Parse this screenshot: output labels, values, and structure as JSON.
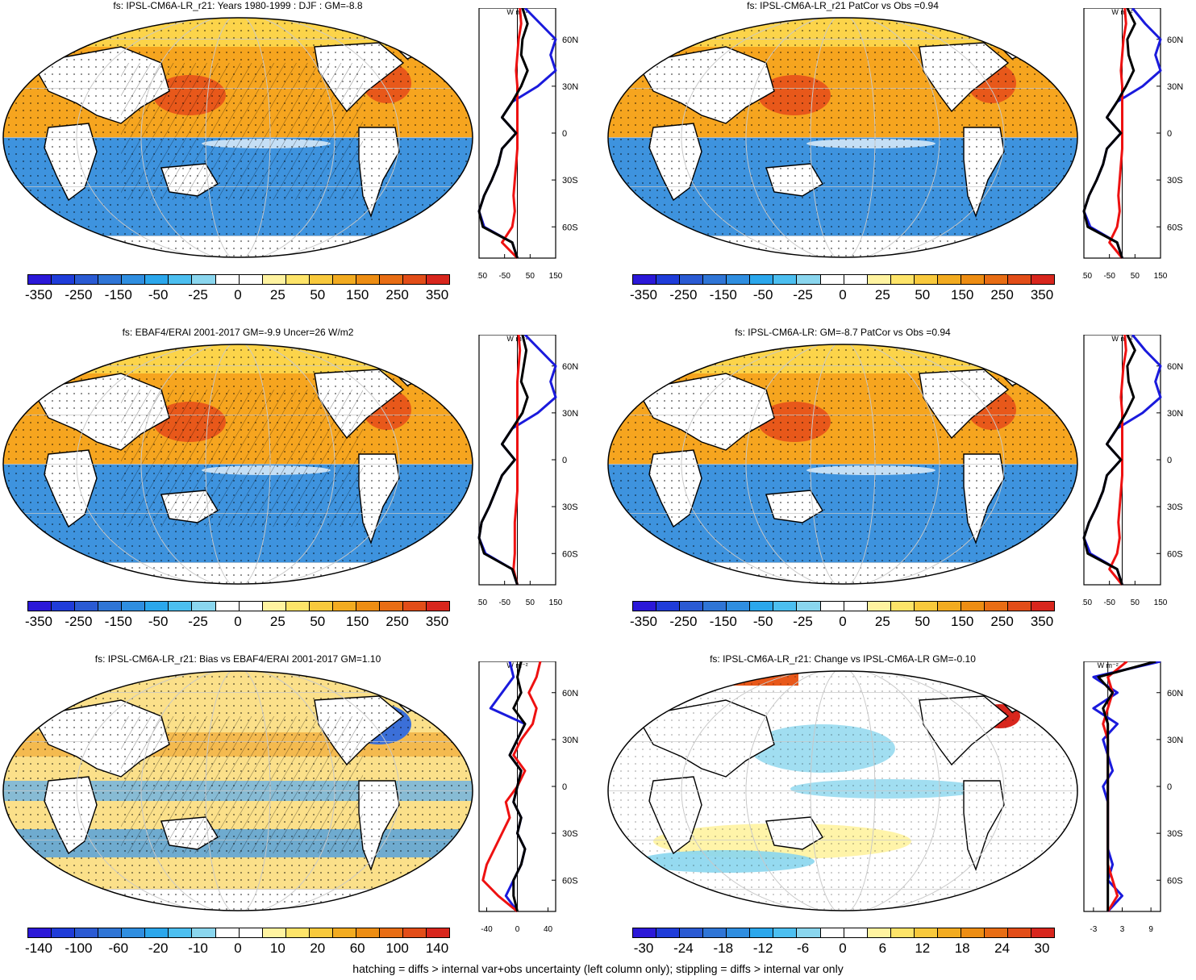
{
  "colors": {
    "colorbar": [
      "#2b18d8",
      "#1f3cd9",
      "#2a5ad3",
      "#2f75d6",
      "#2f8ee0",
      "#2ba7ec",
      "#4cbff0",
      "#8ad6ee",
      "#ffffff",
      "#ffffff",
      "#fff3a0",
      "#fde469",
      "#f8c93c",
      "#f2ab20",
      "#ed8d13",
      "#e86d14",
      "#e24d18",
      "#d8261d"
    ],
    "ocean_warm": "#f6a51f",
    "ocean_warm_strong": "#e8581a",
    "ocean_cool": "#3e93de",
    "land": "#ffffff",
    "line_black": "#000000",
    "line_blue": "#1a1adc",
    "line_red": "#ee1111"
  },
  "panels": [
    {
      "title": "fs: IPSL-CM6A-LR_r21: Years 1980-1999 : DJF : GM=-8.8",
      "colorbar_labels": [
        "-350",
        "-250",
        "-150",
        "-50",
        "-25",
        "0",
        "25",
        "50",
        "150",
        "250",
        "350"
      ],
      "zonal": {
        "unit": "W m⁻²",
        "x_ticks": [
          "-150",
          "-50",
          "50",
          "150"
        ],
        "y_ticks": [
          "60N",
          "30N",
          "0",
          "30S",
          "60S"
        ],
        "xlim": [
          -150,
          150
        ]
      }
    },
    {
      "title": "fs: IPSL-CM6A-LR_r21 PatCor vs Obs =0.94",
      "colorbar_labels": [
        "-350",
        "-250",
        "-150",
        "-50",
        "-25",
        "0",
        "25",
        "50",
        "150",
        "250",
        "350"
      ],
      "zonal": {
        "unit": "W m⁻²",
        "x_ticks": [
          "-150",
          "-50",
          "50",
          "150"
        ],
        "y_ticks": [
          "60N",
          "30N",
          "0",
          "30S",
          "60S"
        ],
        "xlim": [
          -150,
          150
        ]
      }
    },
    {
      "title": "fs: EBAF4/ERAI 2001-2017 GM=-9.9 Uncer=26 W/m2",
      "colorbar_labels": [
        "-350",
        "-250",
        "-150",
        "-50",
        "-25",
        "0",
        "25",
        "50",
        "150",
        "250",
        "350"
      ],
      "zonal": {
        "unit": "W m⁻²",
        "x_ticks": [
          "-150",
          "-50",
          "50",
          "150"
        ],
        "y_ticks": [
          "60N",
          "30N",
          "0",
          "30S",
          "60S"
        ],
        "xlim": [
          -150,
          150
        ]
      }
    },
    {
      "title": "fs: IPSL-CM6A-LR: GM=-8.7 PatCor vs Obs =0.94",
      "colorbar_labels": [
        "-350",
        "-250",
        "-150",
        "-50",
        "-25",
        "0",
        "25",
        "50",
        "150",
        "250",
        "350"
      ],
      "zonal": {
        "unit": "W m⁻²",
        "x_ticks": [
          "-150",
          "-50",
          "50",
          "150"
        ],
        "y_ticks": [
          "60N",
          "30N",
          "0",
          "30S",
          "60S"
        ],
        "xlim": [
          -150,
          150
        ]
      }
    },
    {
      "title": "fs: IPSL-CM6A-LR_r21: Bias vs EBAF4/ERAI 2001-2017 GM=1.10",
      "colorbar_labels": [
        "-140",
        "-100",
        "-60",
        "-20",
        "-10",
        "0",
        "10",
        "20",
        "60",
        "100",
        "140"
      ],
      "zonal": {
        "unit": "W m⁻²",
        "x_ticks": [
          "-40",
          "0",
          "40"
        ],
        "y_ticks": [
          "60N",
          "30N",
          "0",
          "30S",
          "60S"
        ],
        "xlim": [
          -50,
          50
        ]
      }
    },
    {
      "title": "fs: IPSL-CM6A-LR_r21: Change vs IPSL-CM6A-LR GM=-0.10",
      "colorbar_labels": [
        "-30",
        "-24",
        "-18",
        "-12",
        "-6",
        "0",
        "6",
        "12",
        "18",
        "24",
        "30"
      ],
      "zonal": {
        "unit": "W m⁻²",
        "x_ticks": [
          "-3",
          "3",
          "9"
        ],
        "y_ticks": [
          "60N",
          "30N",
          "0",
          "30S",
          "60S"
        ],
        "xlim": [
          -5,
          11
        ]
      }
    }
  ],
  "footnote": "hatching = diffs > internal var+obs uncertainty (left column only); stippling = diffs > internal var only",
  "chart_data": [
    {
      "type": "zonal-mean profile",
      "panel": 1,
      "y_unit": "latitude (deg)",
      "x_unit": "W m-2",
      "series": [
        {
          "color": "black",
          "y": [
            80,
            70,
            60,
            50,
            40,
            30,
            20,
            10,
            0,
            -10,
            -20,
            -30,
            -40,
            -50,
            -60,
            -70,
            -80
          ],
          "x": [
            20,
            40,
            20,
            15,
            40,
            15,
            -20,
            -60,
            -5,
            -60,
            -75,
            -100,
            -130,
            -150,
            -135,
            -20,
            0
          ]
        },
        {
          "color": "blue",
          "y": [
            80,
            70,
            60,
            50,
            40,
            30,
            20,
            10,
            0,
            -10,
            -20,
            -30,
            -40,
            -50,
            -60,
            -70,
            -80
          ],
          "x": [
            30,
            90,
            150,
            130,
            150,
            80,
            -20,
            -60,
            -5,
            -60,
            -75,
            -100,
            -130,
            -150,
            -130,
            -20,
            0
          ]
        },
        {
          "color": "red",
          "y": [
            80,
            70,
            60,
            50,
            40,
            30,
            20,
            10,
            0,
            -10,
            -20,
            -30,
            -40,
            -50,
            -60,
            -70,
            -80
          ],
          "x": [
            10,
            15,
            5,
            0,
            -5,
            0,
            0,
            0,
            0,
            0,
            -5,
            -10,
            -15,
            -10,
            -20,
            -60,
            0
          ]
        }
      ]
    },
    {
      "type": "zonal-mean profile",
      "panel": 2,
      "y_unit": "latitude (deg)",
      "x_unit": "W m-2",
      "series": [
        {
          "color": "black",
          "y": [
            80,
            70,
            60,
            50,
            40,
            30,
            20,
            10,
            0,
            -10,
            -20,
            -30,
            -40,
            -50,
            -60,
            -70,
            -80
          ],
          "x": [
            20,
            50,
            20,
            25,
            45,
            15,
            -20,
            -60,
            -5,
            -60,
            -75,
            -100,
            -130,
            -150,
            -135,
            -20,
            0
          ]
        },
        {
          "color": "blue",
          "y": [
            80,
            70,
            60,
            50,
            40,
            30,
            20,
            10,
            0,
            -10,
            -20,
            -30,
            -40,
            -50,
            -60,
            -70,
            -80
          ],
          "x": [
            40,
            90,
            150,
            130,
            150,
            80,
            -20,
            -60,
            -5,
            -60,
            -75,
            -100,
            -130,
            -150,
            -125,
            -20,
            0
          ]
        },
        {
          "color": "red",
          "y": [
            80,
            70,
            60,
            50,
            40,
            30,
            20,
            10,
            0,
            -10,
            -20,
            -30,
            -40,
            -50,
            -60,
            -70,
            -80
          ],
          "x": [
            10,
            15,
            5,
            0,
            -5,
            0,
            0,
            0,
            0,
            0,
            -5,
            -10,
            -15,
            -10,
            -20,
            -50,
            0
          ]
        }
      ]
    },
    {
      "type": "zonal-mean profile",
      "panel": 3,
      "y_unit": "latitude (deg)",
      "x_unit": "W m-2",
      "series": [
        {
          "color": "black",
          "y": [
            80,
            70,
            60,
            50,
            40,
            30,
            20,
            10,
            0,
            -10,
            -20,
            -30,
            -40,
            -50,
            -60,
            -70,
            -80
          ],
          "x": [
            20,
            35,
            25,
            15,
            40,
            20,
            -20,
            -60,
            -10,
            -60,
            -85,
            -110,
            -140,
            -150,
            -130,
            -20,
            0
          ]
        },
        {
          "color": "blue",
          "y": [
            80,
            70,
            60,
            50,
            40,
            30,
            20,
            10,
            0,
            -10,
            -20,
            -30,
            -40,
            -50,
            -60,
            -70,
            -80
          ],
          "x": [
            30,
            90,
            150,
            130,
            150,
            80,
            -20,
            -60,
            -10,
            -60,
            -85,
            -110,
            -140,
            -150,
            -125,
            -20,
            0
          ]
        },
        {
          "color": "red",
          "y": [
            80,
            70,
            60,
            50,
            40,
            30,
            20,
            10,
            0,
            -10,
            -20,
            -30,
            -40,
            -50,
            -60,
            -70,
            -80
          ],
          "x": [
            5,
            10,
            5,
            0,
            0,
            0,
            0,
            0,
            0,
            0,
            0,
            -5,
            -10,
            -10,
            -10,
            -15,
            0
          ]
        }
      ]
    },
    {
      "type": "zonal-mean profile",
      "panel": 4,
      "y_unit": "latitude (deg)",
      "x_unit": "W m-2",
      "series": [
        {
          "color": "black",
          "y": [
            80,
            70,
            60,
            50,
            40,
            30,
            20,
            10,
            0,
            -10,
            -20,
            -30,
            -40,
            -50,
            -60,
            -70,
            -80
          ],
          "x": [
            20,
            50,
            20,
            25,
            45,
            15,
            -20,
            -60,
            -5,
            -60,
            -75,
            -100,
            -130,
            -150,
            -135,
            -20,
            0
          ]
        },
        {
          "color": "blue",
          "y": [
            80,
            70,
            60,
            50,
            40,
            30,
            20,
            10,
            0,
            -10,
            -20,
            -30,
            -40,
            -50,
            -60,
            -70,
            -80
          ],
          "x": [
            40,
            90,
            150,
            130,
            150,
            80,
            -20,
            -60,
            -5,
            -60,
            -75,
            -100,
            -130,
            -150,
            -125,
            -20,
            0
          ]
        },
        {
          "color": "red",
          "y": [
            80,
            70,
            60,
            50,
            40,
            30,
            20,
            10,
            0,
            -10,
            -20,
            -30,
            -40,
            -50,
            -60,
            -70,
            -80
          ],
          "x": [
            10,
            15,
            5,
            0,
            -5,
            0,
            0,
            0,
            0,
            0,
            -5,
            -10,
            -15,
            -10,
            -20,
            -50,
            0
          ]
        }
      ]
    },
    {
      "type": "zonal-mean profile",
      "panel": 5,
      "y_unit": "latitude (deg)",
      "x_unit": "W m-2",
      "series": [
        {
          "color": "black",
          "y": [
            80,
            70,
            60,
            50,
            40,
            30,
            20,
            10,
            0,
            -10,
            -20,
            -30,
            -40,
            -50,
            -60,
            -70,
            -80
          ],
          "x": [
            5,
            0,
            5,
            -5,
            10,
            0,
            -10,
            5,
            0,
            -5,
            5,
            0,
            10,
            5,
            -5,
            -5,
            0
          ]
        },
        {
          "color": "blue",
          "y": [
            80,
            70,
            60,
            50,
            40,
            30,
            20,
            10,
            0,
            -10,
            -20,
            -30,
            -40,
            -50,
            -60,
            -70,
            -80
          ],
          "x": [
            -10,
            -5,
            -20,
            -35,
            10,
            0,
            -10,
            5,
            0,
            -5,
            5,
            0,
            10,
            5,
            -5,
            -15,
            0
          ]
        },
        {
          "color": "red",
          "y": [
            80,
            70,
            60,
            50,
            40,
            30,
            20,
            10,
            0,
            -10,
            -20,
            -30,
            -40,
            -50,
            -60,
            -70,
            -80
          ],
          "x": [
            30,
            25,
            15,
            25,
            20,
            5,
            -5,
            10,
            0,
            -15,
            -10,
            -20,
            -30,
            -40,
            -45,
            -25,
            0
          ]
        }
      ]
    },
    {
      "type": "zonal-mean profile",
      "panel": 6,
      "y_unit": "latitude (deg)",
      "x_unit": "W m-2",
      "series": [
        {
          "color": "black",
          "y": [
            80,
            70,
            60,
            50,
            40,
            30,
            20,
            10,
            0,
            -10,
            -20,
            -30,
            -40,
            -50,
            -60,
            -70,
            -80
          ],
          "x": [
            10,
            -2,
            1,
            -1,
            0,
            0,
            0,
            0,
            0,
            0,
            0,
            0,
            0,
            0,
            0,
            0,
            0
          ]
        },
        {
          "color": "blue",
          "y": [
            80,
            70,
            60,
            50,
            40,
            30,
            20,
            10,
            0,
            -10,
            -20,
            -30,
            -40,
            -50,
            -60,
            -70,
            -80
          ],
          "x": [
            11,
            -3,
            2,
            -3,
            2,
            -1,
            0,
            1,
            -1,
            0,
            0,
            0,
            0,
            1,
            0,
            3,
            0
          ]
        },
        {
          "color": "red",
          "y": [
            80,
            70,
            60,
            50,
            40,
            30,
            20,
            10,
            0,
            -10,
            -20,
            -30,
            -40,
            -50,
            -60,
            -70,
            -80
          ],
          "x": [
            4,
            0,
            1,
            0,
            -1,
            0,
            0,
            0,
            0,
            0,
            0,
            0,
            0,
            0,
            1,
            2,
            0
          ]
        }
      ]
    }
  ]
}
